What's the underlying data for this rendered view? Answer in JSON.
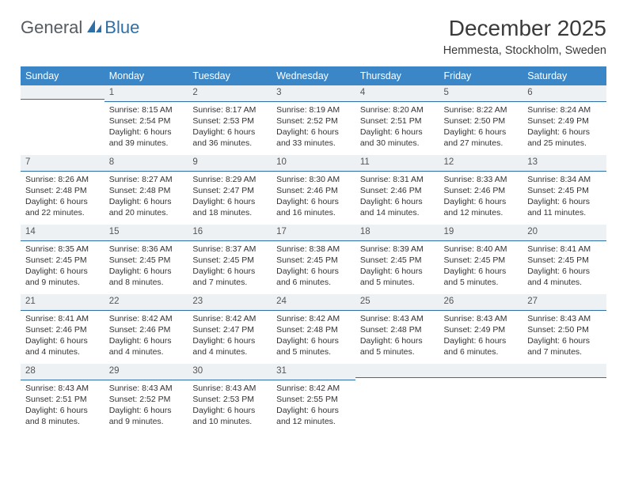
{
  "logo": {
    "general": "General",
    "blue": "Blue"
  },
  "title": "December 2025",
  "location": "Hemmesta, Stockholm, Sweden",
  "colors": {
    "header_bg": "#3b86c6",
    "header_text": "#ffffff",
    "band_bg": "#eef1f4",
    "band_border": "#2f6fa8",
    "text": "#333333",
    "logo_gray": "#555b60",
    "logo_blue": "#2f6fa8"
  },
  "day_headers": [
    "Sunday",
    "Monday",
    "Tuesday",
    "Wednesday",
    "Thursday",
    "Friday",
    "Saturday"
  ],
  "weeks": [
    [
      {
        "n": "",
        "sr": "",
        "ss": "",
        "dl": ""
      },
      {
        "n": "1",
        "sr": "Sunrise: 8:15 AM",
        "ss": "Sunset: 2:54 PM",
        "dl": "Daylight: 6 hours and 39 minutes."
      },
      {
        "n": "2",
        "sr": "Sunrise: 8:17 AM",
        "ss": "Sunset: 2:53 PM",
        "dl": "Daylight: 6 hours and 36 minutes."
      },
      {
        "n": "3",
        "sr": "Sunrise: 8:19 AM",
        "ss": "Sunset: 2:52 PM",
        "dl": "Daylight: 6 hours and 33 minutes."
      },
      {
        "n": "4",
        "sr": "Sunrise: 8:20 AM",
        "ss": "Sunset: 2:51 PM",
        "dl": "Daylight: 6 hours and 30 minutes."
      },
      {
        "n": "5",
        "sr": "Sunrise: 8:22 AM",
        "ss": "Sunset: 2:50 PM",
        "dl": "Daylight: 6 hours and 27 minutes."
      },
      {
        "n": "6",
        "sr": "Sunrise: 8:24 AM",
        "ss": "Sunset: 2:49 PM",
        "dl": "Daylight: 6 hours and 25 minutes."
      }
    ],
    [
      {
        "n": "7",
        "sr": "Sunrise: 8:26 AM",
        "ss": "Sunset: 2:48 PM",
        "dl": "Daylight: 6 hours and 22 minutes."
      },
      {
        "n": "8",
        "sr": "Sunrise: 8:27 AM",
        "ss": "Sunset: 2:48 PM",
        "dl": "Daylight: 6 hours and 20 minutes."
      },
      {
        "n": "9",
        "sr": "Sunrise: 8:29 AM",
        "ss": "Sunset: 2:47 PM",
        "dl": "Daylight: 6 hours and 18 minutes."
      },
      {
        "n": "10",
        "sr": "Sunrise: 8:30 AM",
        "ss": "Sunset: 2:46 PM",
        "dl": "Daylight: 6 hours and 16 minutes."
      },
      {
        "n": "11",
        "sr": "Sunrise: 8:31 AM",
        "ss": "Sunset: 2:46 PM",
        "dl": "Daylight: 6 hours and 14 minutes."
      },
      {
        "n": "12",
        "sr": "Sunrise: 8:33 AM",
        "ss": "Sunset: 2:46 PM",
        "dl": "Daylight: 6 hours and 12 minutes."
      },
      {
        "n": "13",
        "sr": "Sunrise: 8:34 AM",
        "ss": "Sunset: 2:45 PM",
        "dl": "Daylight: 6 hours and 11 minutes."
      }
    ],
    [
      {
        "n": "14",
        "sr": "Sunrise: 8:35 AM",
        "ss": "Sunset: 2:45 PM",
        "dl": "Daylight: 6 hours and 9 minutes."
      },
      {
        "n": "15",
        "sr": "Sunrise: 8:36 AM",
        "ss": "Sunset: 2:45 PM",
        "dl": "Daylight: 6 hours and 8 minutes."
      },
      {
        "n": "16",
        "sr": "Sunrise: 8:37 AM",
        "ss": "Sunset: 2:45 PM",
        "dl": "Daylight: 6 hours and 7 minutes."
      },
      {
        "n": "17",
        "sr": "Sunrise: 8:38 AM",
        "ss": "Sunset: 2:45 PM",
        "dl": "Daylight: 6 hours and 6 minutes."
      },
      {
        "n": "18",
        "sr": "Sunrise: 8:39 AM",
        "ss": "Sunset: 2:45 PM",
        "dl": "Daylight: 6 hours and 5 minutes."
      },
      {
        "n": "19",
        "sr": "Sunrise: 8:40 AM",
        "ss": "Sunset: 2:45 PM",
        "dl": "Daylight: 6 hours and 5 minutes."
      },
      {
        "n": "20",
        "sr": "Sunrise: 8:41 AM",
        "ss": "Sunset: 2:45 PM",
        "dl": "Daylight: 6 hours and 4 minutes."
      }
    ],
    [
      {
        "n": "21",
        "sr": "Sunrise: 8:41 AM",
        "ss": "Sunset: 2:46 PM",
        "dl": "Daylight: 6 hours and 4 minutes."
      },
      {
        "n": "22",
        "sr": "Sunrise: 8:42 AM",
        "ss": "Sunset: 2:46 PM",
        "dl": "Daylight: 6 hours and 4 minutes."
      },
      {
        "n": "23",
        "sr": "Sunrise: 8:42 AM",
        "ss": "Sunset: 2:47 PM",
        "dl": "Daylight: 6 hours and 4 minutes."
      },
      {
        "n": "24",
        "sr": "Sunrise: 8:42 AM",
        "ss": "Sunset: 2:48 PM",
        "dl": "Daylight: 6 hours and 5 minutes."
      },
      {
        "n": "25",
        "sr": "Sunrise: 8:43 AM",
        "ss": "Sunset: 2:48 PM",
        "dl": "Daylight: 6 hours and 5 minutes."
      },
      {
        "n": "26",
        "sr": "Sunrise: 8:43 AM",
        "ss": "Sunset: 2:49 PM",
        "dl": "Daylight: 6 hours and 6 minutes."
      },
      {
        "n": "27",
        "sr": "Sunrise: 8:43 AM",
        "ss": "Sunset: 2:50 PM",
        "dl": "Daylight: 6 hours and 7 minutes."
      }
    ],
    [
      {
        "n": "28",
        "sr": "Sunrise: 8:43 AM",
        "ss": "Sunset: 2:51 PM",
        "dl": "Daylight: 6 hours and 8 minutes."
      },
      {
        "n": "29",
        "sr": "Sunrise: 8:43 AM",
        "ss": "Sunset: 2:52 PM",
        "dl": "Daylight: 6 hours and 9 minutes."
      },
      {
        "n": "30",
        "sr": "Sunrise: 8:43 AM",
        "ss": "Sunset: 2:53 PM",
        "dl": "Daylight: 6 hours and 10 minutes."
      },
      {
        "n": "31",
        "sr": "Sunrise: 8:42 AM",
        "ss": "Sunset: 2:55 PM",
        "dl": "Daylight: 6 hours and 12 minutes."
      },
      {
        "n": "",
        "sr": "",
        "ss": "",
        "dl": ""
      },
      {
        "n": "",
        "sr": "",
        "ss": "",
        "dl": ""
      },
      {
        "n": "",
        "sr": "",
        "ss": "",
        "dl": ""
      }
    ]
  ]
}
